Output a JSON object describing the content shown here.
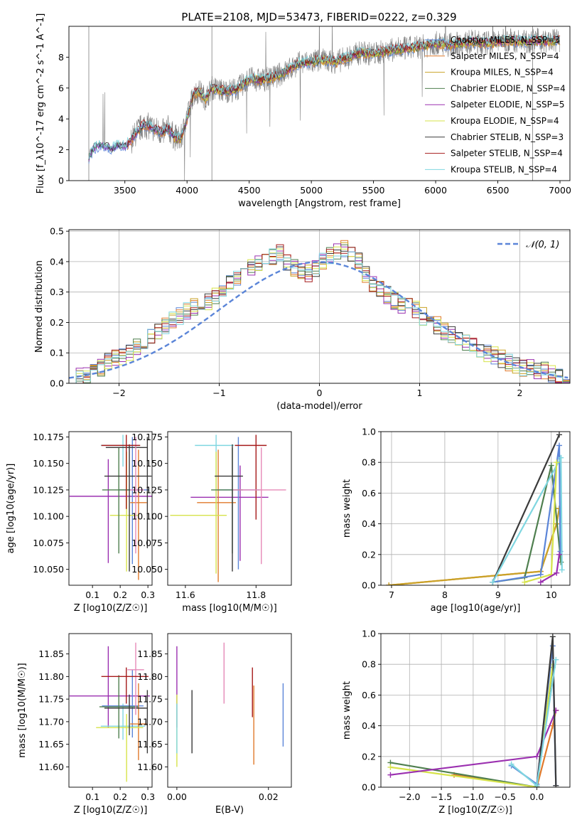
{
  "figure_title": "PLATE=2108, MJD=53473, FIBERID=0222, z=0.329",
  "colors": {
    "blue": "#5b85d8",
    "orange": "#e07a2c",
    "gold": "#c9a227",
    "green": "#4f7f4f",
    "purple": "#9b30b0",
    "yellow": "#d6e34a",
    "dark": "#3a3a3a",
    "red": "#a61b1b",
    "cyan": "#7fd6e0",
    "pink": "#e68ab8",
    "gray": "#7f7f7f",
    "grid": "#b0b0b0"
  },
  "chart_data": [
    {
      "id": "spectrum",
      "type": "line",
      "title": "PLATE=2108, MJD=53473, FIBERID=0222, z=0.329",
      "xlabel": "wavelength [Angstrom, rest frame]",
      "ylabel": "Flux [f_λ10^-17 erg cm^-2 s^-1 A^-1]",
      "xlim": [
        3050,
        7080
      ],
      "ylim": [
        0,
        10
      ],
      "xticks": [
        3500,
        4000,
        4500,
        5000,
        5500,
        6000,
        6500,
        7000
      ],
      "yticks": [
        0,
        2,
        4,
        6,
        8
      ],
      "legend_position": "top-right",
      "data_envelope": {
        "x": [
          3210,
          3250,
          3300,
          3350,
          3400,
          3450,
          3500,
          3550,
          3600,
          3650,
          3700,
          3750,
          3800,
          3850,
          3900,
          3950,
          4000,
          4050,
          4100,
          4150,
          4200,
          4300,
          4400,
          4500,
          4600,
          4700,
          4800,
          4900,
          5000,
          5100,
          5200,
          5300,
          5400,
          5500,
          5600,
          5700,
          5800,
          5900,
          6000,
          6100,
          6200,
          6300,
          6400,
          6500,
          6600,
          6700,
          6800,
          6900,
          7000
        ],
        "y": [
          1.5,
          2.1,
          2.3,
          2.2,
          2.1,
          2.3,
          2.2,
          2.6,
          3.2,
          3.6,
          3.5,
          3.3,
          3.1,
          3.4,
          2.8,
          2.7,
          4.0,
          5.6,
          5.8,
          5.3,
          6.0,
          5.8,
          5.9,
          6.6,
          6.5,
          6.7,
          7.1,
          7.6,
          7.7,
          7.8,
          7.7,
          8.0,
          8.3,
          8.2,
          8.4,
          8.5,
          8.6,
          8.7,
          8.9,
          8.8,
          8.9,
          9.0,
          8.9,
          9.0,
          9.1,
          9.0,
          9.1,
          9.0,
          9.1
        ]
      },
      "series": [
        {
          "name": "Chabrier MILES, N_SSP=3",
          "color": "#5b85d8"
        },
        {
          "name": "Salpeter MILES, N_SSP=4",
          "color": "#e07a2c"
        },
        {
          "name": "Kroupa MILES, N_SSP=4",
          "color": "#c9a227"
        },
        {
          "name": "Chabrier ELODIE, N_SSP=4",
          "color": "#4f7f4f"
        },
        {
          "name": "Salpeter ELODIE, N_SSP=5",
          "color": "#9b30b0"
        },
        {
          "name": "Kroupa ELODIE, N_SSP=4",
          "color": "#d6e34a"
        },
        {
          "name": "Chabrier STELIB, N_SSP=3",
          "color": "#3a3a3a"
        },
        {
          "name": "Salpeter STELIB, N_SSP=4",
          "color": "#a61b1b"
        },
        {
          "name": "Kroupa STELIB, N_SSP=4",
          "color": "#7fd6e0"
        }
      ]
    },
    {
      "id": "residuals",
      "type": "line",
      "xlabel": "(data-model)/error",
      "ylabel": "Normed distribution",
      "xlim": [
        -2.5,
        2.5
      ],
      "ylim": [
        0,
        0.505
      ],
      "xticks": [
        -2,
        -1,
        0,
        1,
        2
      ],
      "yticks": [
        0.0,
        0.1,
        0.2,
        0.3,
        0.4,
        0.5
      ],
      "grid": true,
      "legend_position": "top-right",
      "legend": "𝒩(0, 1)",
      "bin_width": 0.1,
      "bin_start": -2.5,
      "histogram_mean": [
        0.01,
        0.02,
        0.03,
        0.04,
        0.05,
        0.07,
        0.08,
        0.09,
        0.1,
        0.12,
        0.13,
        0.15,
        0.17,
        0.19,
        0.21,
        0.22,
        0.24,
        0.25,
        0.26,
        0.27,
        0.29,
        0.31,
        0.33,
        0.35,
        0.37,
        0.38,
        0.39,
        0.4,
        0.42,
        0.43,
        0.4,
        0.38,
        0.37,
        0.36,
        0.38,
        0.4,
        0.42,
        0.43,
        0.44,
        0.43,
        0.4,
        0.36,
        0.33,
        0.31,
        0.29,
        0.27,
        0.26,
        0.25,
        0.24,
        0.22,
        0.21,
        0.19,
        0.17,
        0.16,
        0.14,
        0.13,
        0.12,
        0.11,
        0.1,
        0.09,
        0.08,
        0.07,
        0.06,
        0.05,
        0.05,
        0.04,
        0.04,
        0.03,
        0.03,
        0.02
      ]
    },
    {
      "id": "age_vs_Z",
      "type": "scatter",
      "xlabel": "Z [log10(Z/Z☉)]",
      "ylabel": "age  [log10(age/yr)]",
      "xlim": [
        0.015,
        0.315
      ],
      "ylim": [
        10.035,
        10.18
      ],
      "xticks": [
        0.1,
        0.2,
        0.3
      ],
      "yticks": [
        10.05,
        10.075,
        10.1,
        10.125,
        10.15,
        10.175
      ],
      "points": [
        {
          "x": 0.157,
          "y": 10.119,
          "xerr": [
            0.14,
            0.16
          ],
          "yerr": [
            0.063,
            0.035
          ],
          "color": "#9b30b0"
        },
        {
          "x": 0.21,
          "y": 10.167,
          "xerr": [
            0.08,
            0.06
          ],
          "yerr": [
            0.02,
            0.01
          ],
          "color": "#7fd6e0"
        },
        {
          "x": 0.244,
          "y": 10.125,
          "xerr": [
            0.05,
            0.06
          ],
          "yerr": [
            0.07,
            0.05
          ],
          "color": "#5b85d8"
        },
        {
          "x": 0.266,
          "y": 10.113,
          "xerr": [
            0.03,
            0.03
          ],
          "yerr": [
            0.073,
            0.05
          ],
          "color": "#e07a2c"
        },
        {
          "x": 0.223,
          "y": 10.101,
          "xerr": [
            0.06,
            0.04
          ],
          "yerr": [
            0.053,
            0.06
          ],
          "color": "#d6e34a"
        },
        {
          "x": 0.195,
          "y": 10.125,
          "xerr": [
            0.06,
            0.04
          ],
          "yerr": [
            0.06,
            0.04
          ],
          "color": "#4f7f4f"
        },
        {
          "x": 0.233,
          "y": 10.138,
          "xerr": [
            0.09,
            0.08
          ],
          "yerr": [
            0.09,
            0.03
          ],
          "color": "#3a3a3a"
        },
        {
          "x": 0.298,
          "y": 10.165,
          "xerr": [
            0.15,
            0.0
          ],
          "yerr": [
            0.095,
            0.01
          ],
          "color": "#3a3a3a"
        },
        {
          "x": 0.256,
          "y": 10.125,
          "xerr": [
            0.02,
            0.03
          ],
          "yerr": [
            0.06,
            0.05
          ],
          "color": "#e68ab8"
        },
        {
          "x": 0.222,
          "y": 10.167,
          "xerr": [
            0.09,
            0.05
          ],
          "yerr": [
            0.06,
            0.01
          ],
          "color": "#a61b1b"
        }
      ]
    },
    {
      "id": "age_vs_mass",
      "type": "scatter",
      "xlabel": "mass [log10(M/M☉)]",
      "ylabel": "",
      "xlim": [
        11.55,
        11.9
      ],
      "ylim": [
        10.035,
        10.18
      ],
      "xticks": [
        11.6,
        11.8
      ],
      "yticks": [
        10.05,
        10.075,
        10.1,
        10.125,
        10.15,
        10.175
      ],
      "points": [
        {
          "x": 11.755,
          "y": 10.118,
          "xerr": [
            0.14,
            0.08
          ],
          "yerr": [
            0.06,
            0.03
          ],
          "color": "#9b30b0"
        },
        {
          "x": 11.687,
          "y": 10.167,
          "xerr": [
            0.06,
            0.05
          ],
          "yerr": [
            0.06,
            0.01
          ],
          "color": "#7fd6e0"
        },
        {
          "x": 11.75,
          "y": 10.125,
          "xerr": [
            0.06,
            0.06
          ],
          "yerr": [
            0.075,
            0.05
          ],
          "color": "#5b85d8"
        },
        {
          "x": 11.693,
          "y": 10.113,
          "xerr": [
            0.06,
            0.05
          ],
          "yerr": [
            0.075,
            0.05
          ],
          "color": "#e07a2c"
        },
        {
          "x": 11.687,
          "y": 10.101,
          "xerr": [
            0.13,
            0.03
          ],
          "yerr": [
            0.055,
            0.06
          ],
          "color": "#d6e34a"
        },
        {
          "x": 11.733,
          "y": 10.125,
          "xerr": [
            0.06,
            0.03
          ],
          "yerr": [
            0.06,
            0.04
          ],
          "color": "#4f7f4f"
        },
        {
          "x": 11.733,
          "y": 10.138,
          "xerr": [
            0.05,
            0.03
          ],
          "yerr": [
            0.09,
            0.03
          ],
          "color": "#3a3a3a"
        },
        {
          "x": 11.8,
          "y": 10.167,
          "xerr": [
            0.06,
            0.03
          ],
          "yerr": [
            0.07,
            0.01
          ],
          "color": "#a61b1b"
        },
        {
          "x": 11.815,
          "y": 10.125,
          "xerr": [
            0.08,
            0.07
          ],
          "yerr": [
            0.07,
            0.04
          ],
          "color": "#e68ab8"
        }
      ]
    },
    {
      "id": "weight_vs_age",
      "type": "line",
      "xlabel": "age  [log10(age/yr)]",
      "ylabel": "mass weight",
      "xlim": [
        6.8,
        10.35
      ],
      "ylim": [
        0,
        1
      ],
      "xticks": [
        7,
        8,
        9,
        10
      ],
      "yticks": [
        0.0,
        0.2,
        0.4,
        0.6,
        0.8,
        1.0
      ],
      "grid": true,
      "series": [
        {
          "color": "#e07a2c",
          "x": [
            6.95,
            9.8,
            10.1,
            10.15
          ],
          "y": [
            0.0,
            0.09,
            0.4,
            0.5
          ]
        },
        {
          "color": "#c9a227",
          "x": [
            6.95,
            9.8,
            10.1,
            10.15
          ],
          "y": [
            0.0,
            0.09,
            0.4,
            0.5
          ]
        },
        {
          "color": "#4f7f4f",
          "x": [
            8.9,
            9.5,
            10.0,
            10.18
          ],
          "y": [
            0.02,
            0.05,
            0.78,
            0.15
          ]
        },
        {
          "color": "#5b85d8",
          "x": [
            8.9,
            9.8,
            10.15,
            10.17
          ],
          "y": [
            0.02,
            0.07,
            0.91,
            0.22
          ]
        },
        {
          "color": "#3a3a3a",
          "x": [
            8.9,
            10.15
          ],
          "y": [
            0.02,
            0.98
          ]
        },
        {
          "color": "#7fd6e0",
          "x": [
            8.9,
            10.18,
            10.2
          ],
          "y": [
            0.02,
            0.83,
            0.1
          ]
        },
        {
          "color": "#d6e34a",
          "x": [
            9.5,
            10.0,
            10.1
          ],
          "y": [
            0.02,
            0.07,
            0.8
          ]
        },
        {
          "color": "#9b30b0",
          "x": [
            9.8,
            10.1,
            10.15
          ],
          "y": [
            0.02,
            0.08,
            0.2
          ]
        }
      ]
    },
    {
      "id": "mass_vs_Z",
      "type": "scatter",
      "xlabel": "Z [log10(Z/Z☉)]",
      "ylabel": "mass [log10(M/M☉)]",
      "xlim": [
        0.015,
        0.315
      ],
      "ylim": [
        11.555,
        11.895
      ],
      "xticks": [
        0.1,
        0.2,
        0.3
      ],
      "yticks": [
        11.6,
        11.65,
        11.7,
        11.75,
        11.8,
        11.85
      ],
      "points": [
        {
          "x": 0.157,
          "y": 11.757,
          "xerr": [
            0.14,
            0.15
          ],
          "yerr": [
            0.07,
            0.11
          ],
          "color": "#9b30b0"
        },
        {
          "x": 0.21,
          "y": 11.69,
          "xerr": [
            0.08,
            0.08
          ],
          "yerr": [
            0.03,
            0.05
          ],
          "color": "#7fd6e0"
        },
        {
          "x": 0.244,
          "y": 11.735,
          "xerr": [
            0.11,
            0.04
          ],
          "yerr": [
            0.07,
            0.08
          ],
          "color": "#5b85d8"
        },
        {
          "x": 0.266,
          "y": 11.695,
          "xerr": [
            0.03,
            0.03
          ],
          "yerr": [
            0.08,
            0.09
          ],
          "color": "#e07a2c"
        },
        {
          "x": 0.223,
          "y": 11.687,
          "xerr": [
            0.11,
            0.06
          ],
          "yerr": [
            0.12,
            0.03
          ],
          "color": "#d6e34a"
        },
        {
          "x": 0.195,
          "y": 11.733,
          "xerr": [
            0.07,
            0.07
          ],
          "yerr": [
            0.07,
            0.07
          ],
          "color": "#4f7f4f"
        },
        {
          "x": 0.233,
          "y": 11.73,
          "xerr": [
            0.09,
            0.06
          ],
          "yerr": [
            0.06,
            0.03
          ],
          "color": "#3a3a3a"
        },
        {
          "x": 0.298,
          "y": 11.73,
          "xerr": [
            0.04,
            0.0
          ],
          "yerr": [
            0.1,
            0.04
          ],
          "color": "#3a3a3a"
        },
        {
          "x": 0.256,
          "y": 11.815,
          "xerr": [
            0.03,
            0.03
          ],
          "yerr": [
            0.1,
            0.06
          ],
          "color": "#e68ab8"
        },
        {
          "x": 0.222,
          "y": 11.8,
          "xerr": [
            0.09,
            0.08
          ],
          "yerr": [
            0.06,
            0.02
          ],
          "color": "#a61b1b"
        }
      ]
    },
    {
      "id": "mass_vs_ebv",
      "type": "scatter",
      "xlabel": "E(B-V)",
      "ylabel": "",
      "xlim": [
        -0.002,
        0.025
      ],
      "ylim": [
        11.555,
        11.895
      ],
      "xticks": [
        0.0,
        0.02
      ],
      "yticks": [
        11.6,
        11.65,
        11.7,
        11.75,
        11.8,
        11.85
      ],
      "points": [
        {
          "x": 0.0,
          "y": 11.757,
          "yerr": [
            0.07,
            0.11
          ],
          "color": "#9b30b0"
        },
        {
          "x": 0.0,
          "y": 11.69,
          "yerr": [
            0.09,
            0.07
          ],
          "color": "#d6e34a"
        },
        {
          "x": 0.0,
          "y": 11.69,
          "yerr": [
            0.06,
            0.05
          ],
          "color": "#7fd6e0"
        },
        {
          "x": 0.0033,
          "y": 11.7,
          "yerr": [
            0.07,
            0.07
          ],
          "color": "#3a3a3a"
        },
        {
          "x": 0.0103,
          "y": 11.81,
          "yerr": [
            0.07,
            0.065
          ],
          "color": "#e68ab8"
        },
        {
          "x": 0.0165,
          "y": 11.76,
          "yerr": [
            0.05,
            0.06
          ],
          "color": "#a61b1b"
        },
        {
          "x": 0.0168,
          "y": 11.69,
          "yerr": [
            0.085,
            0.09
          ],
          "color": "#e07a2c"
        },
        {
          "x": 0.0232,
          "y": 11.715,
          "yerr": [
            0.07,
            0.07
          ],
          "color": "#5b85d8"
        }
      ]
    },
    {
      "id": "weight_vs_Z",
      "type": "line",
      "xlabel": "Z [log10(Z/Z☉)]",
      "ylabel": "mass weight",
      "xlim": [
        -2.45,
        0.52
      ],
      "ylim": [
        0,
        1
      ],
      "xticks": [
        -2.0,
        -1.5,
        -1.0,
        -0.5,
        0.0
      ],
      "yticks": [
        0.0,
        0.2,
        0.4,
        0.6,
        0.8,
        1.0
      ],
      "grid": true,
      "series": [
        {
          "color": "#e07a2c",
          "x": [
            -1.3,
            0.0,
            0.25,
            0.3
          ],
          "y": [
            0.08,
            0.0,
            0.4,
            0.5
          ]
        },
        {
          "color": "#4f7f4f",
          "x": [
            -2.3,
            0.0,
            0.25
          ],
          "y": [
            0.16,
            0.0,
            0.78
          ]
        },
        {
          "color": "#d6e34a",
          "x": [
            -2.3,
            0.0,
            0.25
          ],
          "y": [
            0.13,
            0.0,
            0.8
          ]
        },
        {
          "color": "#9b30b0",
          "x": [
            -2.3,
            0.0,
            0.3
          ],
          "y": [
            0.08,
            0.2,
            0.5
          ]
        },
        {
          "color": "#5b85d8",
          "x": [
            -0.4,
            0.0,
            0.25,
            0.3
          ],
          "y": [
            0.14,
            0.02,
            0.92,
            0.01
          ]
        },
        {
          "color": "#3a3a3a",
          "x": [
            0.0,
            0.25,
            0.3
          ],
          "y": [
            0.0,
            0.98,
            0.01
          ]
        },
        {
          "color": "#7fd6e0",
          "x": [
            -0.4,
            0.0,
            0.3
          ],
          "y": [
            0.15,
            0.01,
            0.83
          ]
        }
      ]
    }
  ]
}
